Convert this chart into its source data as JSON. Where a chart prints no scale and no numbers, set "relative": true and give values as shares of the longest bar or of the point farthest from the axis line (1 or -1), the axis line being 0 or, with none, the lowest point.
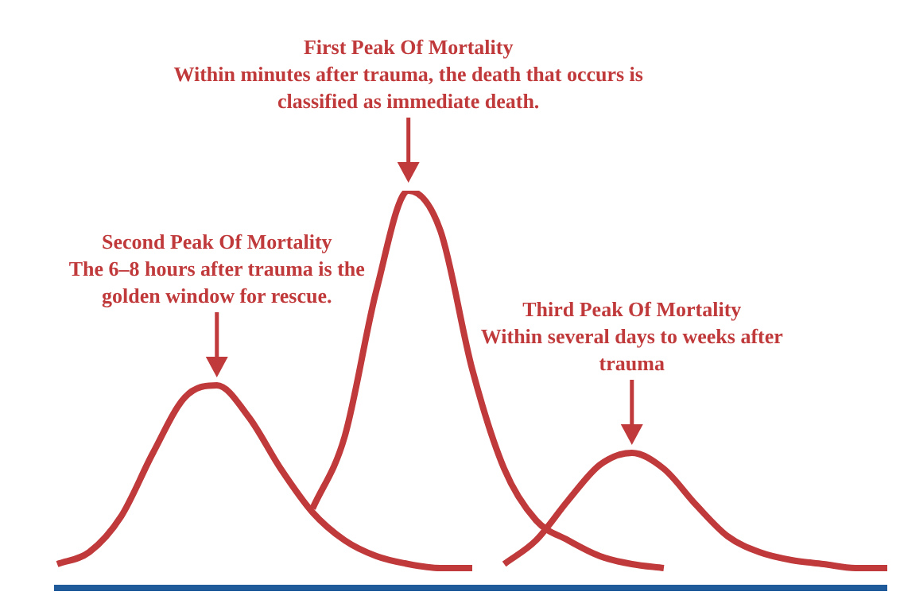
{
  "chart_data": {
    "type": "line",
    "relative": true,
    "categories": [
      null,
      null,
      null,
      null,
      null,
      null,
      null,
      null,
      null,
      null,
      null,
      null,
      null,
      null,
      null,
      null,
      null,
      null,
      null,
      null,
      null,
      null,
      null,
      null,
      null,
      null,
      null
    ],
    "series": [
      {
        "color": "#c0393b",
        "values": [
          0.06,
          0.09,
          0.18,
          0.34,
          0.48,
          0.51,
          0.43,
          0.3,
          0.19,
          0.12,
          0.08,
          0.06,
          0.05,
          0.05,
          null,
          null,
          null,
          null,
          null,
          null,
          null,
          null,
          null,
          null,
          null,
          null,
          null
        ]
      },
      {
        "color": "#c0393b",
        "values": [
          null,
          null,
          null,
          null,
          null,
          null,
          null,
          null,
          0.2,
          0.38,
          0.75,
          1,
          0.9,
          0.55,
          0.3,
          0.17,
          0.12,
          0.08,
          0.06,
          0.05,
          null,
          null,
          null,
          null,
          null,
          null,
          null
        ]
      },
      {
        "color": "#c0393b",
        "values": [
          null,
          null,
          null,
          null,
          null,
          null,
          null,
          null,
          null,
          null,
          null,
          null,
          null,
          null,
          0.06,
          0.12,
          0.22,
          0.31,
          0.34,
          0.3,
          0.21,
          0.13,
          0.09,
          0.07,
          0.06,
          0.05,
          0.05
        ]
      }
    ],
    "annotations": [
      "Second Peak Of Mortality\nThe 6–8 hours after trauma is the\ngolden window for rescue.",
      "First Peak Of Mortality\nWithin minutes after trauma, the death that occurs is\nclassified as immediate death.",
      "Third Peak Of Mortality\nWithin several days to weeks after\ntrauma"
    ],
    "grid": false,
    "legend": false,
    "marker": "none",
    "line_style": "solid"
  }
}
